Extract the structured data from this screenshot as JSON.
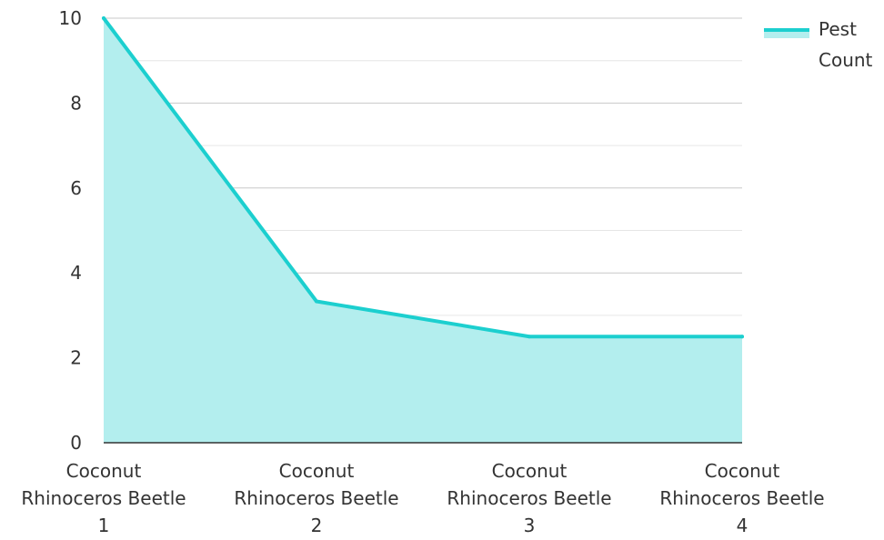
{
  "chart_data": {
    "type": "area",
    "categories": [
      [
        "Coconut",
        "Rhinoceros Beetle",
        "1"
      ],
      [
        "Coconut",
        "Rhinoceros Beetle",
        "2"
      ],
      [
        "Coconut",
        "Rhinoceros Beetle",
        "3"
      ],
      [
        "Coconut",
        "Rhinoceros Beetle",
        "4"
      ]
    ],
    "series": [
      {
        "name": "Pest Count",
        "values": [
          10,
          3.33,
          2.5,
          2.5
        ],
        "color": "#1ccfcf",
        "fill_color": "#b3eeee"
      }
    ],
    "yticks": [
      "0",
      "2",
      "4",
      "6",
      "8",
      "10"
    ],
    "ylim": [
      0,
      10
    ],
    "grid": true,
    "legend": {
      "position": "top-right",
      "lines": [
        "Pest",
        "Count"
      ]
    }
  }
}
